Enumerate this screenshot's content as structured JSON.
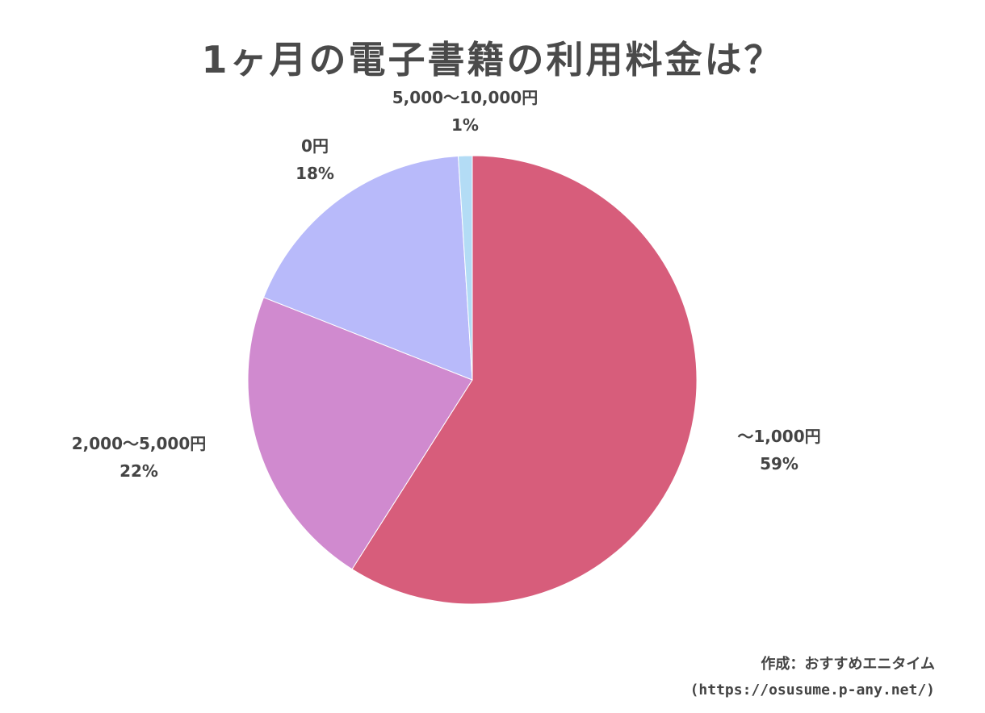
{
  "chart_data": {
    "type": "pie",
    "title": "1ヶ月の電子書籍の利用料金は？",
    "slices": [
      {
        "label": "〜1,000円",
        "value": 59,
        "value_label": "59%",
        "color": "#d75d7b"
      },
      {
        "label": "2,000〜5,000円",
        "value": 22,
        "value_label": "22%",
        "color": "#d08acf"
      },
      {
        "label": "0円",
        "value": 18,
        "value_label": "18%",
        "color": "#b8bafa"
      },
      {
        "label": "5,000〜10,000円",
        "value": 1,
        "value_label": "1%",
        "color": "#b3dcf5"
      }
    ]
  },
  "credit": {
    "line1": "作成：おすすめエニタイム",
    "line2": "(https://osusume.p-any.net/)"
  }
}
